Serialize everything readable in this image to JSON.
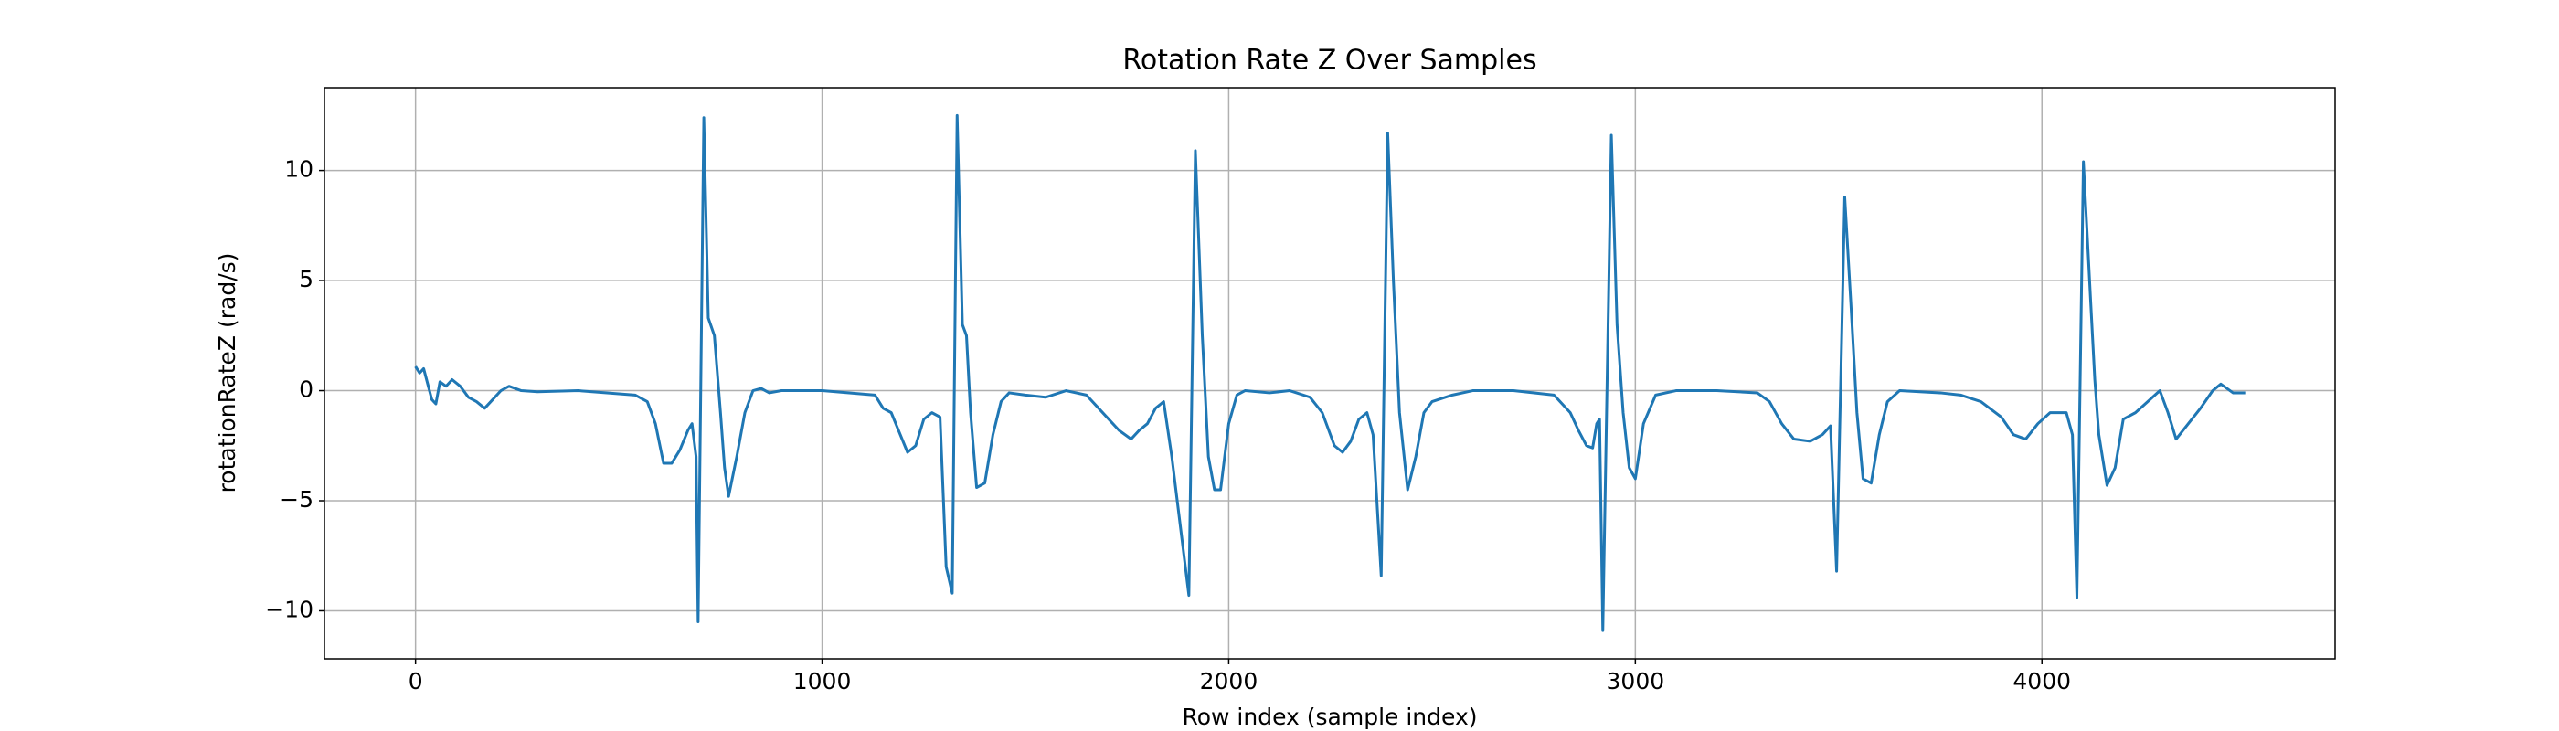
{
  "chart_data": {
    "type": "line",
    "title": "Rotation Rate Z Over Samples",
    "x_label": "Row index (sample index)",
    "y_label": "rotationRateZ (rad/s)",
    "color": "#1f77b4",
    "grid": true,
    "xlim": [
      -224,
      4721
    ],
    "ylim": [
      -12.18,
      13.76
    ],
    "xticks": [
      0,
      1000,
      2000,
      3000,
      4000
    ],
    "yticks": [
      {
        "value": -10,
        "label": "−10"
      },
      {
        "value": -5,
        "label": "−5"
      },
      0,
      5,
      10
    ],
    "x": [
      0,
      10,
      20,
      30,
      40,
      50,
      60,
      75,
      90,
      110,
      130,
      150,
      170,
      190,
      210,
      230,
      260,
      300,
      400,
      540,
      570,
      590,
      610,
      630,
      650,
      670,
      680,
      690,
      695,
      709,
      720,
      735,
      750,
      760,
      770,
      790,
      810,
      830,
      850,
      870,
      900,
      1000,
      1130,
      1150,
      1170,
      1190,
      1210,
      1230,
      1250,
      1270,
      1290,
      1305,
      1320,
      1332,
      1345,
      1355,
      1365,
      1380,
      1400,
      1420,
      1440,
      1460,
      1500,
      1550,
      1600,
      1650,
      1680,
      1700,
      1730,
      1760,
      1780,
      1800,
      1820,
      1840,
      1860,
      1902,
      1918,
      1935,
      1950,
      1965,
      1980,
      2000,
      2020,
      2040,
      2100,
      2150,
      2200,
      2230,
      2260,
      2280,
      2300,
      2320,
      2340,
      2355,
      2375,
      2391,
      2405,
      2420,
      2440,
      2460,
      2480,
      2500,
      2550,
      2600,
      2700,
      2800,
      2840,
      2860,
      2880,
      2895,
      2905,
      2912,
      2920,
      2941,
      2955,
      2970,
      2985,
      3000,
      3020,
      3050,
      3100,
      3200,
      3300,
      3330,
      3360,
      3390,
      3430,
      3460,
      3480,
      3495,
      3515,
      3530,
      3545,
      3560,
      3580,
      3600,
      3620,
      3650,
      3750,
      3800,
      3850,
      3900,
      3930,
      3960,
      3990,
      4020,
      4060,
      4075,
      4086,
      4102,
      4120,
      4130,
      4140,
      4160,
      4180,
      4200,
      4230,
      4260,
      4290,
      4310,
      4330,
      4360,
      4390,
      4420,
      4440,
      4470,
      4500
    ],
    "values": [
      1.1,
      0.8,
      1.0,
      0.3,
      -0.4,
      -0.6,
      0.4,
      0.2,
      0.5,
      0.2,
      -0.3,
      -0.5,
      -0.8,
      -0.4,
      0,
      0.2,
      0,
      -0.05,
      0,
      -0.2,
      -0.5,
      -1.5,
      -3.3,
      -3.3,
      -2.7,
      -1.8,
      -1.5,
      -3,
      -10.5,
      12.4,
      3.3,
      2.5,
      -1,
      -3.5,
      -4.8,
      -3,
      -1,
      0,
      0.1,
      -0.1,
      0,
      0,
      -0.2,
      -0.8,
      -1,
      -1.9,
      -2.8,
      -2.5,
      -1.3,
      -1,
      -1.2,
      -8,
      -9.2,
      12.5,
      3,
      2.5,
      -1,
      -4.4,
      -4.2,
      -2,
      -0.5,
      -0.1,
      -0.2,
      -0.3,
      0,
      -0.2,
      -0.8,
      -1.2,
      -1.8,
      -2.2,
      -1.8,
      -1.5,
      -0.8,
      -0.5,
      -3,
      -9.3,
      10.9,
      2.5,
      -3,
      -4.5,
      -4.5,
      -1.5,
      -0.2,
      0,
      -0.1,
      0,
      -0.3,
      -1,
      -2.5,
      -2.8,
      -2.3,
      -1.3,
      -1,
      -2,
      -8.4,
      11.7,
      5,
      -1,
      -4.5,
      -3,
      -1,
      -0.5,
      -0.2,
      0,
      0,
      -0.2,
      -1,
      -1.8,
      -2.5,
      -2.6,
      -1.5,
      -1.3,
      -10.9,
      11.6,
      3,
      -1,
      -3.5,
      -4,
      -1.5,
      -0.2,
      0,
      0,
      -0.1,
      -0.5,
      -1.5,
      -2.2,
      -2.3,
      -2,
      -1.6,
      -8.2,
      8.8,
      4,
      -1,
      -4,
      -4.2,
      -2,
      -0.5,
      0,
      -0.1,
      -0.2,
      -0.5,
      -1.2,
      -2,
      -2.2,
      -1.5,
      -1,
      -1,
      -2,
      -9.4,
      10.4,
      4,
      0.5,
      -2,
      -4.3,
      -3.5,
      -1.3,
      -1,
      -0.5,
      0,
      -1,
      -2.2,
      -1.5,
      -0.8,
      0,
      0.3,
      -0.1,
      -0.1
    ]
  }
}
